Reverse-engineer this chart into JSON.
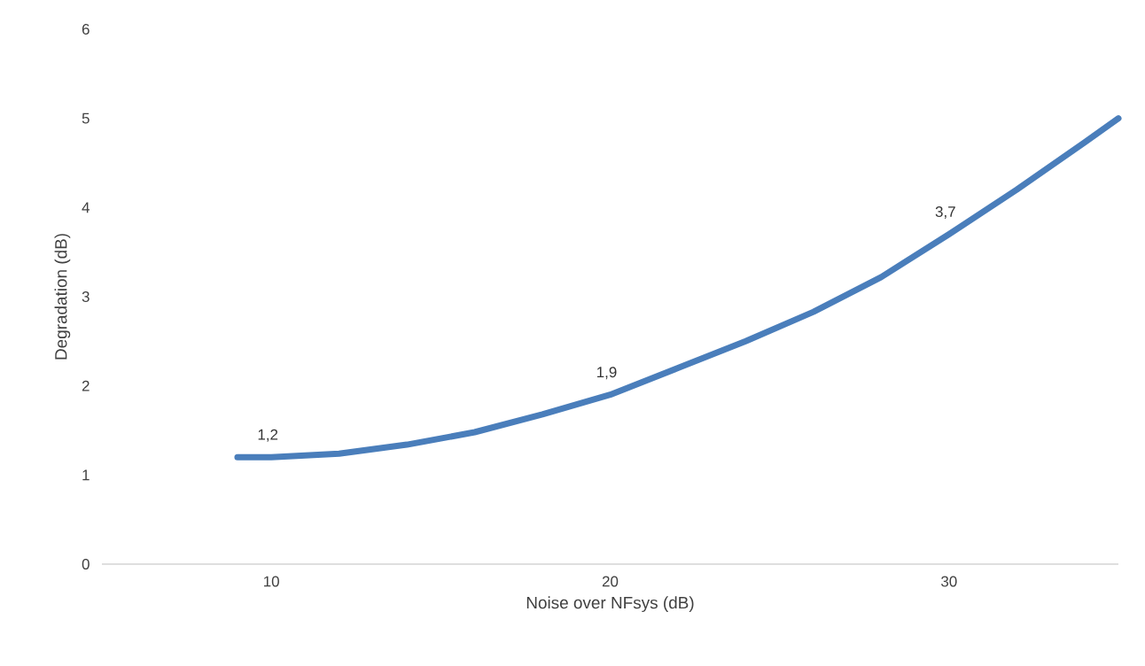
{
  "chart_data": {
    "type": "line",
    "xlabel": "Noise over NFsys (dB)",
    "ylabel": "Degradation (dB)",
    "x": [
      9,
      10,
      12,
      14,
      16,
      18,
      20,
      22,
      24,
      26,
      28,
      30,
      32,
      34,
      35
    ],
    "values": [
      1.2,
      1.2,
      1.24,
      1.34,
      1.48,
      1.68,
      1.9,
      2.2,
      2.5,
      2.83,
      3.22,
      3.7,
      4.2,
      4.73,
      5.0
    ],
    "value_labels": [
      null,
      "1,2",
      null,
      null,
      null,
      null,
      "1,9",
      null,
      null,
      null,
      null,
      "3,7",
      null,
      null,
      null
    ],
    "color": "#4a7ebb",
    "xlim": [
      5,
      35
    ],
    "xticks": [
      10,
      20,
      30
    ],
    "ylim": [
      0,
      6
    ],
    "yticks": [
      0,
      1,
      2,
      3,
      4,
      5,
      6
    ]
  }
}
